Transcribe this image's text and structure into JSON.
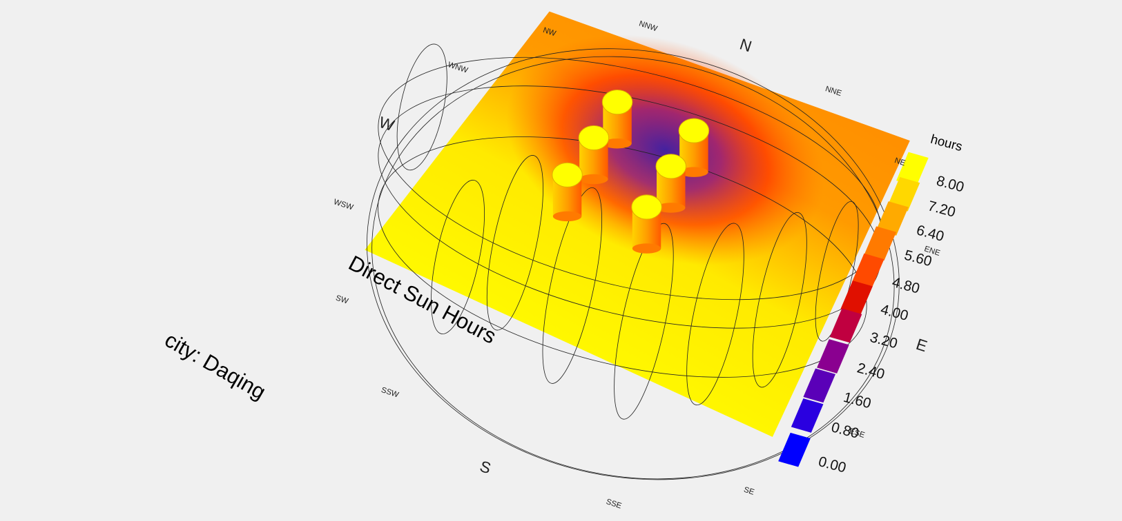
{
  "title": "Direct Sun Hours",
  "location": "city: Daqing",
  "compass": [
    "N",
    "NNE",
    "NE",
    "ENE",
    "E",
    "ESE",
    "SE",
    "SSE",
    "S",
    "SSW",
    "SW",
    "WSW",
    "W",
    "WNW",
    "NW",
    "NNW"
  ],
  "legend": {
    "title": "hours",
    "labels": [
      "8.00",
      "7.20",
      "6.40",
      "5.60",
      "4.80",
      "4.00",
      "3.20",
      "2.40",
      "1.60",
      "0.80",
      "0.00"
    ]
  }
}
